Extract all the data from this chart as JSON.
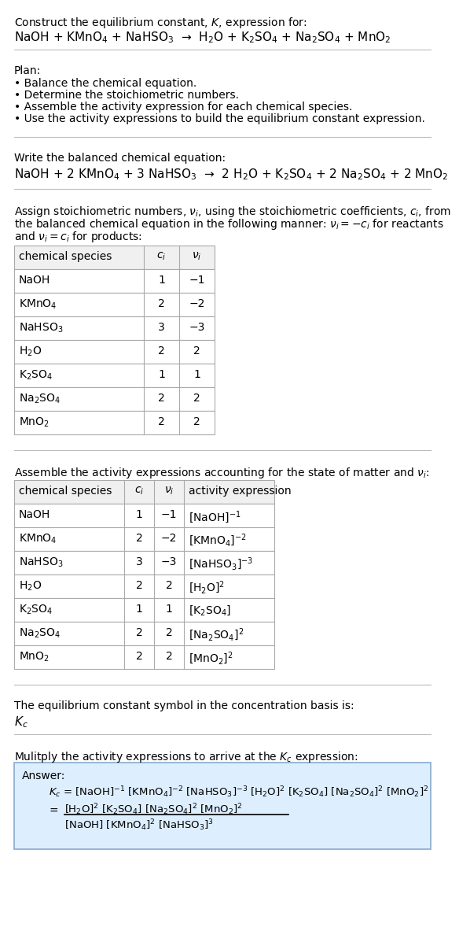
{
  "title_line1": "Construct the equilibrium constant, $K$, expression for:",
  "title_line2": "NaOH + KMnO$_4$ + NaHSO$_3$  →  H$_2$O + K$_2$SO$_4$ + Na$_2$SO$_4$ + MnO$_2$",
  "plan_header": "Plan:",
  "plan_items": [
    "• Balance the chemical equation.",
    "• Determine the stoichiometric numbers.",
    "• Assemble the activity expression for each chemical species.",
    "• Use the activity expressions to build the equilibrium constant expression."
  ],
  "balanced_header": "Write the balanced chemical equation:",
  "balanced_eq": "NaOH + 2 KMnO$_4$ + 3 NaHSO$_3$  →  2 H$_2$O + K$_2$SO$_4$ + 2 Na$_2$SO$_4$ + 2 MnO$_2$",
  "stoich_header_lines": [
    "Assign stoichiometric numbers, $\\nu_i$, using the stoichiometric coefficients, $c_i$, from",
    "the balanced chemical equation in the following manner: $\\nu_i = -c_i$ for reactants",
    "and $\\nu_i = c_i$ for products:"
  ],
  "stoich_table_headers": [
    "chemical species",
    "$c_i$",
    "$\\nu_i$"
  ],
  "stoich_table_data": [
    [
      "NaOH",
      "1",
      "−1"
    ],
    [
      "KMnO$_4$",
      "2",
      "−2"
    ],
    [
      "NaHSO$_3$",
      "3",
      "−3"
    ],
    [
      "H$_2$O",
      "2",
      "2"
    ],
    [
      "K$_2$SO$_4$",
      "1",
      "1"
    ],
    [
      "Na$_2$SO$_4$",
      "2",
      "2"
    ],
    [
      "MnO$_2$",
      "2",
      "2"
    ]
  ],
  "activity_header": "Assemble the activity expressions accounting for the state of matter and $\\nu_i$:",
  "activity_table_headers": [
    "chemical species",
    "$c_i$",
    "$\\nu_i$",
    "activity expression"
  ],
  "activity_table_data": [
    [
      "NaOH",
      "1",
      "−1",
      "[NaOH]$^{-1}$"
    ],
    [
      "KMnO$_4$",
      "2",
      "−2",
      "[KMnO$_4$]$^{-2}$"
    ],
    [
      "NaHSO$_3$",
      "3",
      "−3",
      "[NaHSO$_3$]$^{-3}$"
    ],
    [
      "H$_2$O",
      "2",
      "2",
      "[H$_2$O]$^2$"
    ],
    [
      "K$_2$SO$_4$",
      "1",
      "1",
      "[K$_2$SO$_4$]"
    ],
    [
      "Na$_2$SO$_4$",
      "2",
      "2",
      "[Na$_2$SO$_4$]$^2$"
    ],
    [
      "MnO$_2$",
      "2",
      "2",
      "[MnO$_2$]$^2$"
    ]
  ],
  "kc_symbol_header": "The equilibrium constant symbol in the concentration basis is:",
  "kc_symbol": "$K_c$",
  "multiply_header": "Mulitply the activity expressions to arrive at the $K_c$ expression:",
  "answer_label": "Answer:",
  "answer_eq": "$K_c$ = [NaOH]$^{-1}$ [KMnO$_4$]$^{-2}$ [NaHSO$_3$]$^{-3}$ [H$_2$O]$^2$ [K$_2$SO$_4$] [Na$_2$SO$_4$]$^2$ [MnO$_2$]$^2$",
  "answer_num": "[H$_2$O]$^2$ [K$_2$SO$_4$] [Na$_2$SO$_4$]$^2$ [MnO$_2$]$^2$",
  "answer_den": "[NaOH] [KMnO$_4$]$^2$ [NaHSO$_3$]$^3$",
  "bg_color": "#ffffff",
  "table_border_color": "#aaaaaa",
  "answer_box_bg": "#ddeeff",
  "answer_box_border": "#88aacc",
  "sep_color": "#bbbbbb",
  "font_size": 10.0,
  "table_font_size": 10.0
}
